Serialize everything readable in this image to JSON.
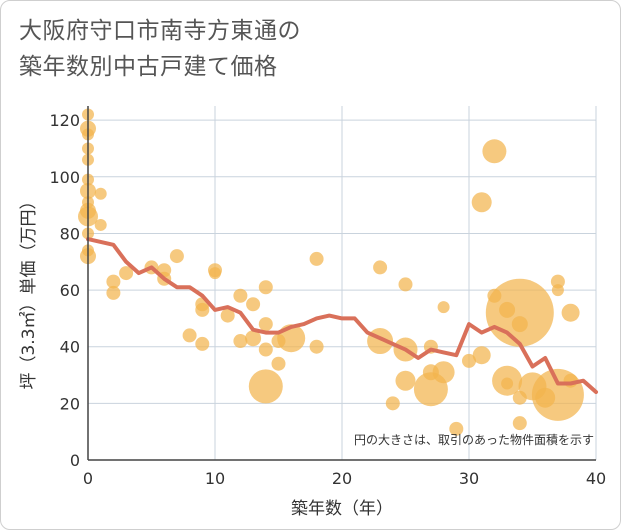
{
  "chart_data": {
    "type": "scatter",
    "title_lines": [
      "大阪府守口市南寺方東通の",
      "築年数別中古戸建て価格"
    ],
    "xlabel": "築年数（年）",
    "ylabel": "坪（3.3㎡）単価（万円）",
    "xlim": [
      0,
      40
    ],
    "ylim": [
      0,
      125
    ],
    "xticks": [
      0,
      10,
      20,
      30,
      40
    ],
    "yticks": [
      0,
      20,
      40,
      60,
      80,
      100,
      120
    ],
    "grid": true,
    "annotation": "円の大きさは、取引のあった物件面積を示す",
    "colors": {
      "bubble": "#f2b44e",
      "line": "#d9705a",
      "grid": "#c9d3dd",
      "axis": "#444444"
    },
    "points": [
      {
        "x": 0,
        "y": 122,
        "size": 6
      },
      {
        "x": 0,
        "y": 117,
        "size": 8
      },
      {
        "x": 0,
        "y": 115,
        "size": 6
      },
      {
        "x": 0,
        "y": 110,
        "size": 6
      },
      {
        "x": 0,
        "y": 106,
        "size": 6
      },
      {
        "x": 0,
        "y": 99,
        "size": 6
      },
      {
        "x": 0,
        "y": 95,
        "size": 8
      },
      {
        "x": 0,
        "y": 91,
        "size": 6
      },
      {
        "x": 0,
        "y": 88,
        "size": 8
      },
      {
        "x": 0,
        "y": 86,
        "size": 10
      },
      {
        "x": 0,
        "y": 80,
        "size": 6
      },
      {
        "x": 0,
        "y": 74,
        "size": 6
      },
      {
        "x": 0,
        "y": 72,
        "size": 8
      },
      {
        "x": 1,
        "y": 94,
        "size": 6
      },
      {
        "x": 1,
        "y": 83,
        "size": 6
      },
      {
        "x": 2,
        "y": 63,
        "size": 7
      },
      {
        "x": 2,
        "y": 59,
        "size": 7
      },
      {
        "x": 3,
        "y": 66,
        "size": 7
      },
      {
        "x": 5,
        "y": 68,
        "size": 7
      },
      {
        "x": 6,
        "y": 67,
        "size": 7
      },
      {
        "x": 6,
        "y": 64,
        "size": 7
      },
      {
        "x": 7,
        "y": 72,
        "size": 7
      },
      {
        "x": 8,
        "y": 44,
        "size": 7
      },
      {
        "x": 9,
        "y": 55,
        "size": 7
      },
      {
        "x": 9,
        "y": 53,
        "size": 7
      },
      {
        "x": 9,
        "y": 41,
        "size": 7
      },
      {
        "x": 10,
        "y": 67,
        "size": 7
      },
      {
        "x": 10,
        "y": 66,
        "size": 6
      },
      {
        "x": 11,
        "y": 51,
        "size": 7
      },
      {
        "x": 12,
        "y": 58,
        "size": 7
      },
      {
        "x": 12,
        "y": 42,
        "size": 7
      },
      {
        "x": 13,
        "y": 55,
        "size": 7
      },
      {
        "x": 13,
        "y": 43,
        "size": 8
      },
      {
        "x": 14,
        "y": 61,
        "size": 7
      },
      {
        "x": 14,
        "y": 48,
        "size": 7
      },
      {
        "x": 14,
        "y": 39,
        "size": 7
      },
      {
        "x": 14,
        "y": 26,
        "size": 17
      },
      {
        "x": 15,
        "y": 42,
        "size": 7
      },
      {
        "x": 15,
        "y": 34,
        "size": 7
      },
      {
        "x": 16,
        "y": 43,
        "size": 14
      },
      {
        "x": 18,
        "y": 71,
        "size": 7
      },
      {
        "x": 18,
        "y": 40,
        "size": 7
      },
      {
        "x": 23,
        "y": 68,
        "size": 7
      },
      {
        "x": 23,
        "y": 42,
        "size": 13
      },
      {
        "x": 24,
        "y": 20,
        "size": 7
      },
      {
        "x": 25,
        "y": 62,
        "size": 7
      },
      {
        "x": 25,
        "y": 39,
        "size": 12
      },
      {
        "x": 25,
        "y": 28,
        "size": 10
      },
      {
        "x": 27,
        "y": 40,
        "size": 7
      },
      {
        "x": 27,
        "y": 31,
        "size": 8
      },
      {
        "x": 27,
        "y": 25,
        "size": 17
      },
      {
        "x": 28,
        "y": 54,
        "size": 6
      },
      {
        "x": 28,
        "y": 31,
        "size": 11
      },
      {
        "x": 29,
        "y": 11,
        "size": 7
      },
      {
        "x": 30,
        "y": 35,
        "size": 7
      },
      {
        "x": 31,
        "y": 91,
        "size": 10
      },
      {
        "x": 31,
        "y": 37,
        "size": 9
      },
      {
        "x": 32,
        "y": 109,
        "size": 12
      },
      {
        "x": 32,
        "y": 58,
        "size": 7
      },
      {
        "x": 33,
        "y": 53,
        "size": 8
      },
      {
        "x": 33,
        "y": 28,
        "size": 15
      },
      {
        "x": 33,
        "y": 27,
        "size": 6
      },
      {
        "x": 34,
        "y": 52,
        "size": 34
      },
      {
        "x": 34,
        "y": 48,
        "size": 8
      },
      {
        "x": 34,
        "y": 22,
        "size": 7
      },
      {
        "x": 34,
        "y": 13,
        "size": 7
      },
      {
        "x": 35,
        "y": 26,
        "size": 14
      },
      {
        "x": 36,
        "y": 22,
        "size": 10
      },
      {
        "x": 37,
        "y": 63,
        "size": 7
      },
      {
        "x": 37,
        "y": 60,
        "size": 6
      },
      {
        "x": 37,
        "y": 23,
        "size": 26
      },
      {
        "x": 38,
        "y": 52,
        "size": 9
      },
      {
        "x": 38,
        "y": 28,
        "size": 7
      }
    ],
    "trend": {
      "x": [
        0,
        1,
        2,
        3,
        4,
        5,
        6,
        7,
        8,
        9,
        10,
        11,
        12,
        13,
        14,
        15,
        16,
        17,
        18,
        19,
        20,
        21,
        22,
        23,
        24,
        25,
        26,
        27,
        28,
        29,
        30,
        31,
        32,
        33,
        34,
        35,
        36,
        37,
        38,
        39,
        40
      ],
      "y": [
        78,
        77,
        76,
        70,
        66,
        68,
        64,
        61,
        61,
        58,
        53,
        54,
        52,
        46,
        45,
        45,
        47,
        48,
        50,
        51,
        50,
        50,
        45,
        43,
        41,
        39,
        36,
        39,
        38,
        37,
        48,
        45,
        47,
        45,
        41,
        33,
        36,
        27,
        27,
        28,
        24
      ]
    }
  }
}
